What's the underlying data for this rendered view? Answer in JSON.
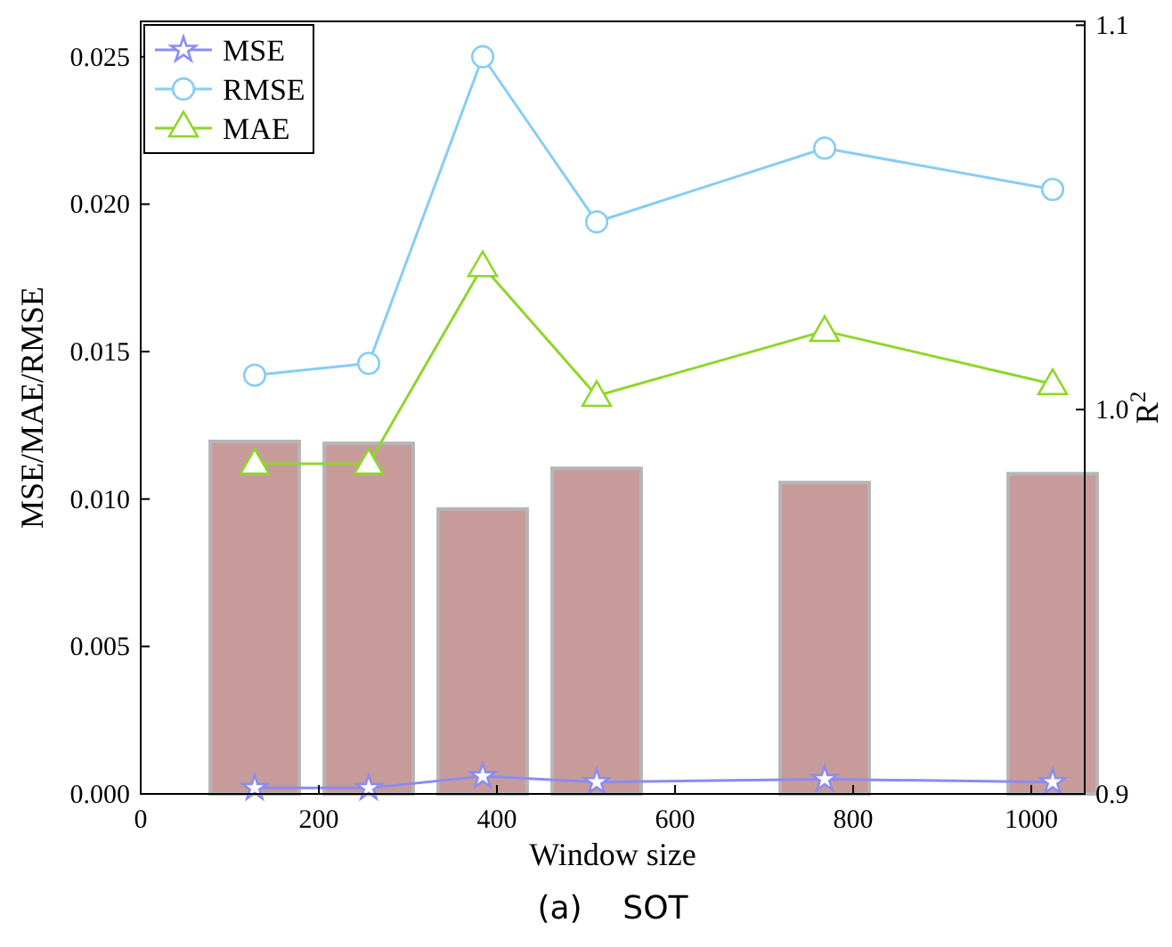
{
  "chart_data": {
    "type": "line",
    "xlabel": "Window size",
    "ylabel": "MSE/MAE/RMSE",
    "y2label": "R$^{2}$",
    "x": [
      128,
      256,
      384,
      512,
      768,
      1024
    ],
    "series": [
      {
        "name": null,
        "type": "bar",
        "axis": "y2",
        "color": "#c89b9b",
        "values": [
          0.9917,
          0.9912,
          0.9741,
          0.9847,
          0.981,
          0.9833
        ]
      },
      {
        "name": "MSE",
        "color": "#8c8cf0",
        "marker": "star",
        "values": [
          0.0002,
          0.0002,
          0.0006,
          0.0004,
          0.0005,
          0.0004
        ]
      },
      {
        "name": "RMSE",
        "color": "#87cdf5",
        "marker": "circle",
        "values": [
          0.0142,
          0.0146,
          0.025,
          0.0194,
          0.0219,
          0.0205
        ]
      },
      {
        "name": "MAE",
        "color": "#8fd62a",
        "marker": "triangle",
        "values": [
          0.0112,
          0.0112,
          0.0179,
          0.0135,
          0.0157,
          0.0139
        ]
      }
    ],
    "xlim": [
      0,
      1060
    ],
    "xticks": [
      0,
      200,
      400,
      600,
      800,
      1000
    ],
    "ylim": [
      0,
      0.0262
    ],
    "yticks": [
      {
        "value": 0,
        "label": "0.000"
      },
      {
        "value": 0.005,
        "label": "0.005"
      },
      {
        "value": 0.01,
        "label": "0.010"
      },
      {
        "value": 0.015,
        "label": "0.015"
      },
      {
        "value": 0.02,
        "label": "0.020"
      },
      {
        "value": 0.025,
        "label": "0.025"
      }
    ],
    "y2lim": [
      0.9,
      1.101
    ],
    "y2ticks": [
      0.9,
      {
        "value": 1.0,
        "label": "1.0"
      },
      1.1
    ],
    "legend": "top left",
    "grid": false,
    "annotations": [
      "(a)    SOT"
    ]
  }
}
